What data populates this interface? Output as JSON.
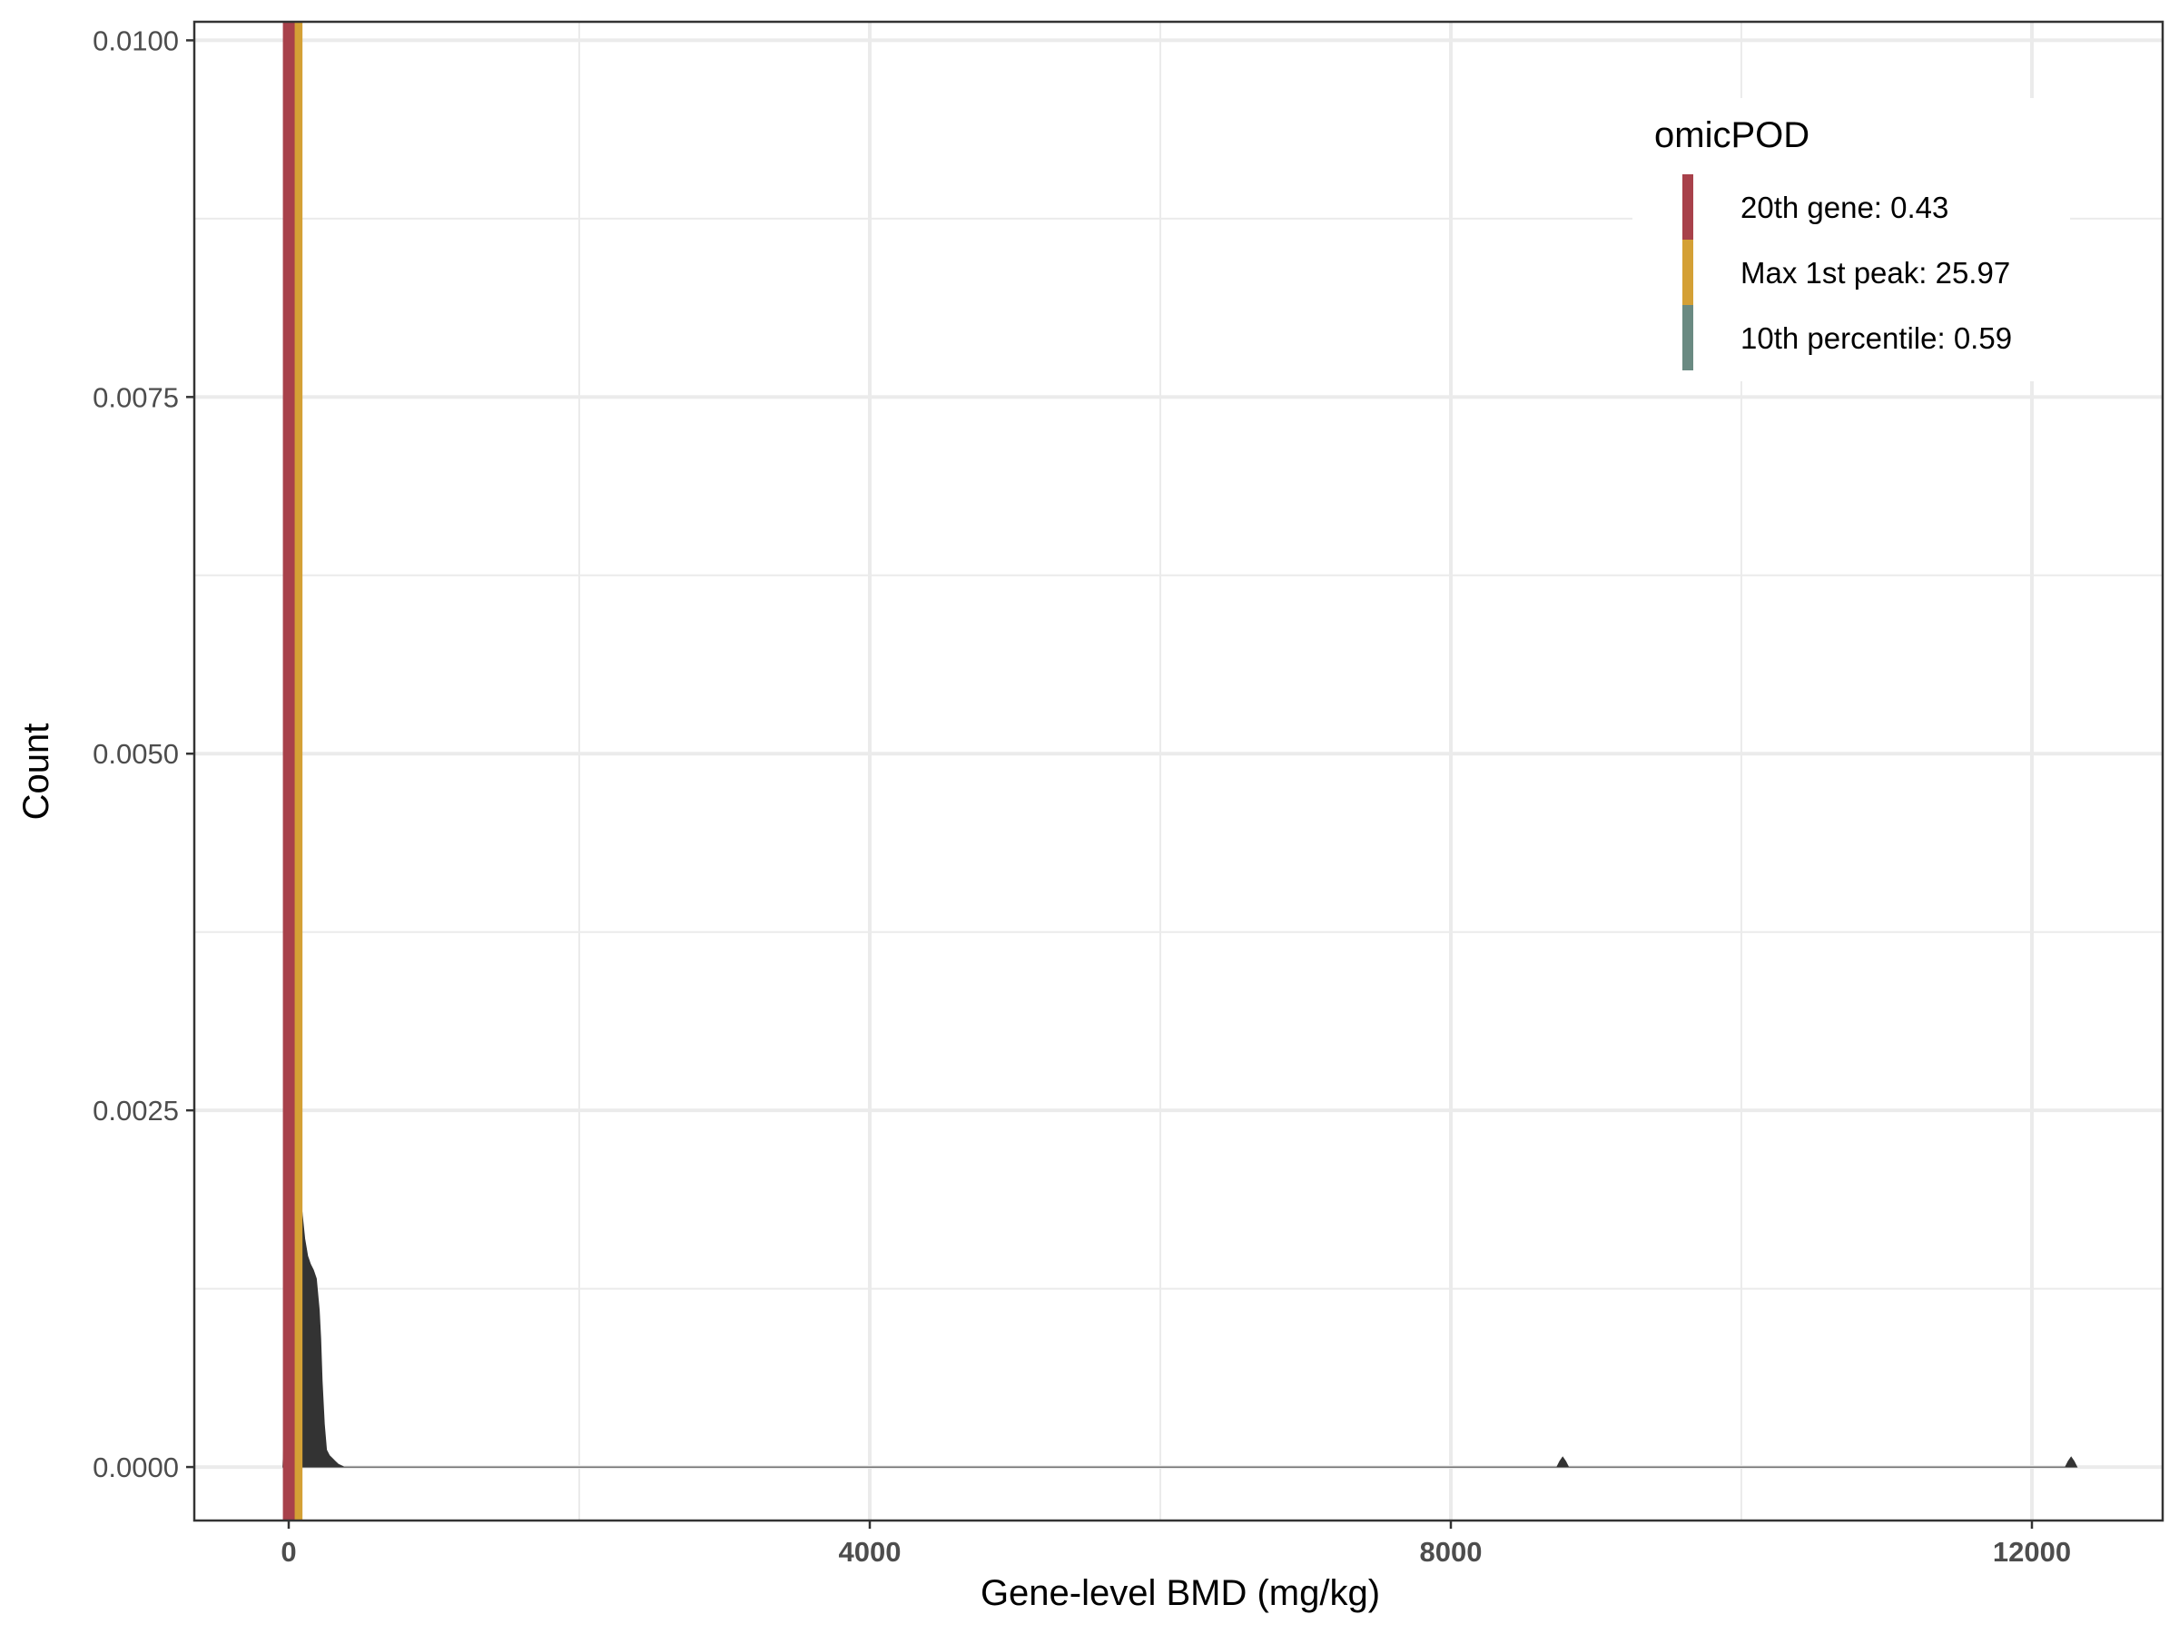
{
  "chart_data": {
    "type": "area",
    "xlabel": "Gene-level BMD (mg/kg)",
    "ylabel": "Count",
    "xlim": [
      -650,
      12900
    ],
    "ylim": [
      -0.000375,
      0.01013
    ],
    "x_ticks": [
      0,
      4000,
      8000,
      12000
    ],
    "x_tick_labels": [
      "0",
      "4000",
      "8000",
      "12000"
    ],
    "y_ticks": [
      0.0,
      0.0025,
      0.005,
      0.0075,
      0.01
    ],
    "y_tick_labels": [
      "0.0000",
      "0.0025",
      "0.0050",
      "0.0075",
      "0.0100"
    ],
    "grid": true,
    "density": {
      "x": [
        -40,
        -20,
        0,
        10,
        25,
        40,
        55,
        70,
        90,
        110,
        130,
        150,
        170,
        190,
        210,
        220,
        230,
        245,
        260,
        280,
        300,
        320,
        340,
        360,
        380,
        8730,
        8750,
        8770,
        8790,
        8810,
        12230,
        12250,
        12270,
        12290,
        12310
      ],
      "y": [
        0.0,
        0.00045,
        0.0017,
        0.0024,
        0.0028,
        0.0027,
        0.0025,
        0.0022,
        0.0018,
        0.0016,
        0.00148,
        0.00142,
        0.00138,
        0.00132,
        0.0011,
        0.0009,
        0.0006,
        0.0003,
        0.00012,
        8e-05,
        6e-05,
        4e-05,
        2e-05,
        1e-05,
        0.0,
        0.0,
        4e-05,
        7e-05,
        4e-05,
        0.0,
        0.0,
        4e-05,
        7e-05,
        4e-05,
        0.0
      ]
    },
    "vlines": [
      {
        "name": "20th gene: 0.43",
        "x": 0.43,
        "color": "#a8414a"
      },
      {
        "name": "Max 1st peak: 25.97",
        "x": 25.97,
        "color": "#d4a035"
      },
      {
        "name": "10th percentile: 0.59",
        "x": 0.59,
        "color": "#6a8a82"
      }
    ],
    "legend": {
      "title": "omicPOD",
      "position": "top-right",
      "entries": [
        "20th gene: 0.43",
        "Max 1st peak: 25.97",
        "10th percentile: 0.59"
      ],
      "colors": [
        "#a8414a",
        "#d4a035",
        "#6a8a82"
      ]
    }
  }
}
